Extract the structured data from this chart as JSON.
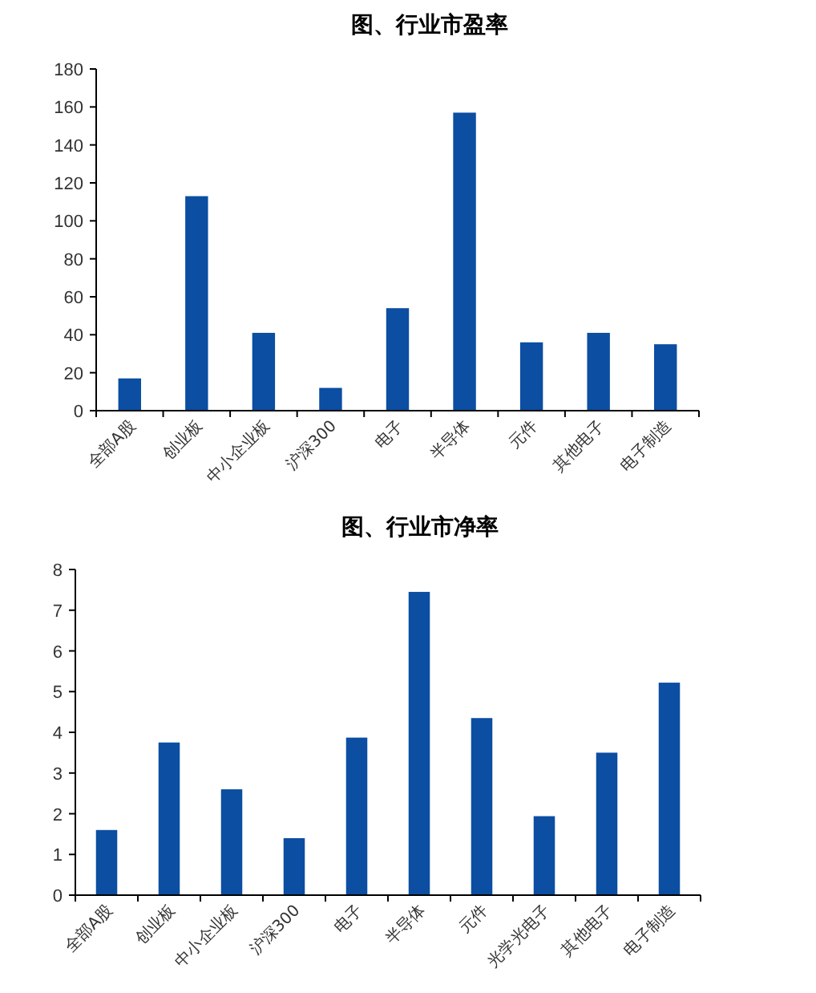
{
  "chart_data": [
    {
      "type": "bar",
      "title": "图、行业市盈率",
      "categories": [
        "全部A股",
        "创业板",
        "中小企业板",
        "沪深300",
        "电子",
        "半导体",
        "元件",
        "其他电子",
        "电子制造"
      ],
      "values": [
        17,
        113,
        41,
        12,
        54,
        157,
        36,
        41,
        35
      ],
      "color": "#0b4ea2",
      "ylim": [
        0,
        180
      ],
      "yticks": [
        0,
        20,
        40,
        60,
        80,
        100,
        120,
        140,
        160,
        180
      ],
      "grid": false
    },
    {
      "type": "bar",
      "title": "图、行业市净率",
      "categories": [
        "全部A股",
        "创业板",
        "中小企业板",
        "沪深300",
        "电子",
        "半导体",
        "元件",
        "光学光电子",
        "其他电子",
        "电子制造"
      ],
      "values": [
        1.6,
        3.75,
        2.6,
        1.4,
        3.87,
        7.45,
        4.35,
        1.94,
        3.5,
        5.22
      ],
      "color": "#0b4ea2",
      "ylim": [
        0,
        8
      ],
      "yticks": [
        0,
        1,
        2,
        3,
        4,
        5,
        6,
        7,
        8
      ],
      "grid": false
    }
  ]
}
